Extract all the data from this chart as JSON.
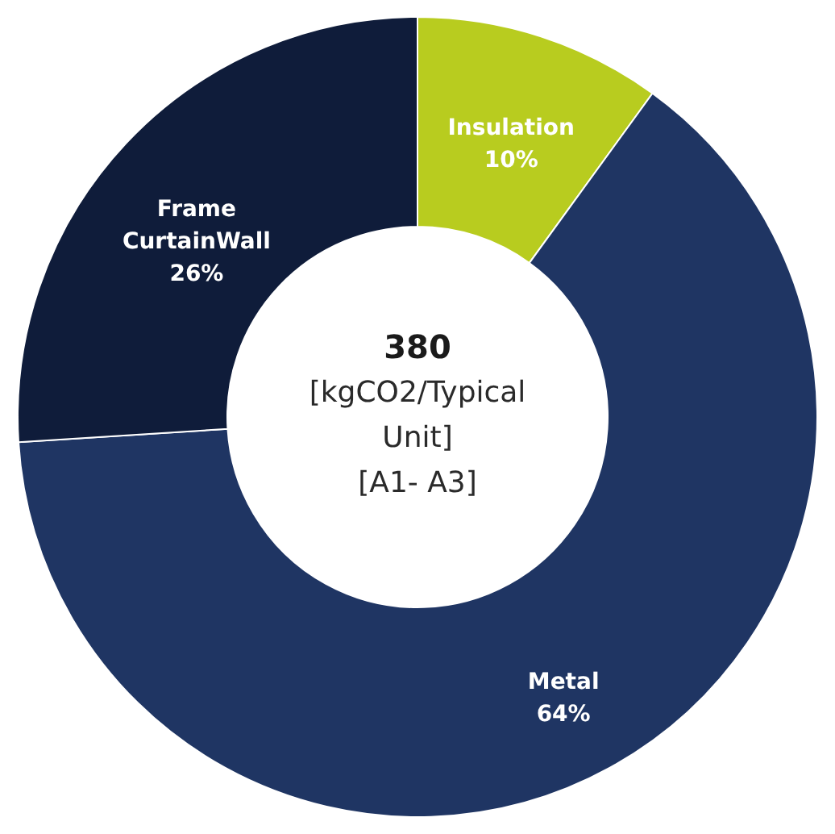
{
  "chart_data": {
    "type": "donut",
    "categories": [
      "Insulation",
      "Metal",
      "Frame CurtainWall"
    ],
    "values": [
      10,
      64,
      26
    ],
    "colors": [
      "#b8cc1f",
      "#1f3563",
      "#0f1c3a"
    ],
    "value_labels": [
      "10%",
      "64%",
      "26%"
    ],
    "annotations": [
      "380",
      "[kgCO2/Typical Unit]",
      "[A1- A3]"
    ],
    "legend": false
  }
}
